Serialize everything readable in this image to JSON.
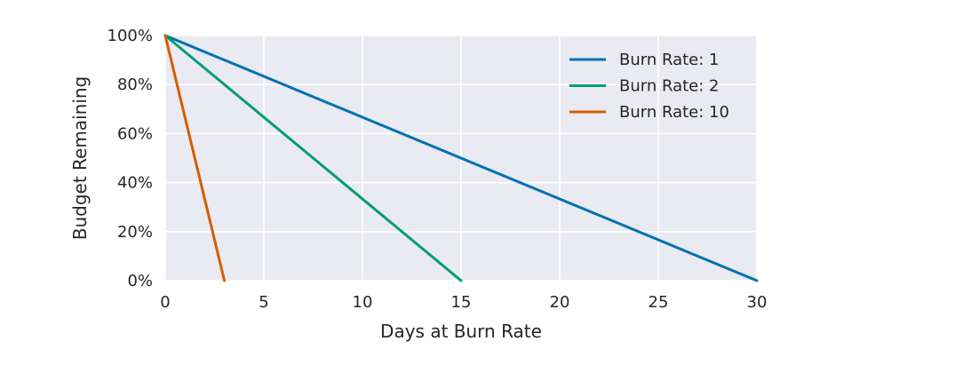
{
  "chart_data": {
    "type": "line",
    "xlabel": "Days at Burn Rate",
    "ylabel": "Budget Remaining",
    "xlim": [
      0,
      30
    ],
    "ylim": [
      0,
      100
    ],
    "x_ticks": [
      0,
      5,
      10,
      15,
      20,
      25,
      30
    ],
    "x_tick_labels": [
      "0",
      "5",
      "10",
      "15",
      "20",
      "25",
      "30"
    ],
    "y_ticks": [
      0,
      20,
      40,
      60,
      80,
      100
    ],
    "y_tick_labels": [
      "0%",
      "20%",
      "40%",
      "60%",
      "80%",
      "100%"
    ],
    "grid": true,
    "legend_position": "top-right",
    "series": [
      {
        "name": "Burn Rate: 1",
        "color": "#0072b2",
        "x": [
          0,
          30
        ],
        "y": [
          100,
          0
        ]
      },
      {
        "name": "Burn Rate: 2",
        "color": "#009e73",
        "x": [
          0,
          15
        ],
        "y": [
          100,
          0
        ]
      },
      {
        "name": "Burn Rate: 10",
        "color": "#d55e00",
        "x": [
          0,
          3
        ],
        "y": [
          100,
          0
        ]
      }
    ],
    "colors": {
      "plot_background": "#eaeaf2",
      "grid": "#ffffff",
      "text": "#262626"
    }
  }
}
